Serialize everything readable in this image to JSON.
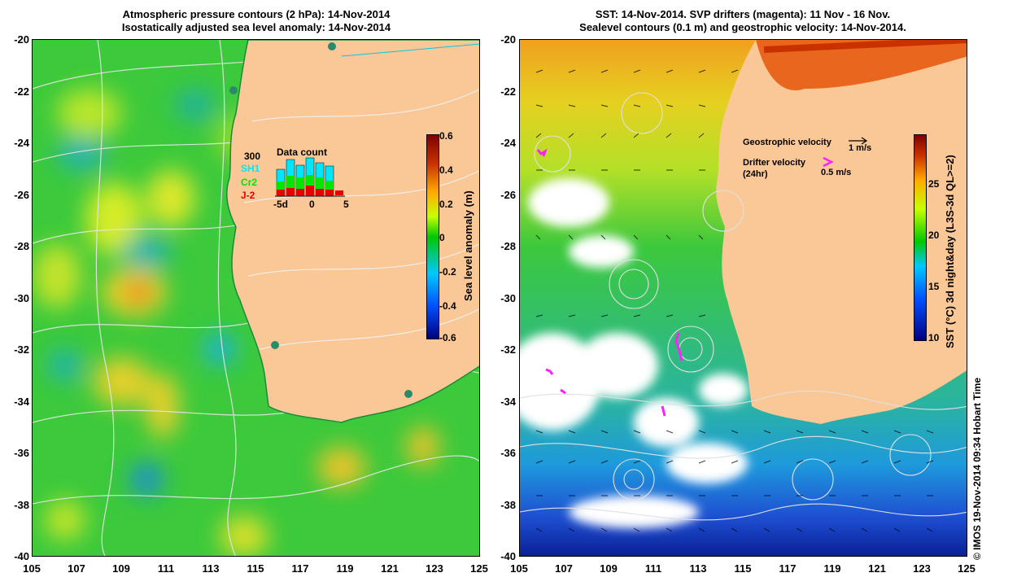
{
  "left_panel": {
    "title_line1": "Atmospheric pressure contours (2 hPa): 14-Nov-2014",
    "title_line2": "Isostatically adjusted sea level anomaly: 14-Nov-2014",
    "colorbar": {
      "label": "Sea level anomaly (m)",
      "ticks": [
        "0.6",
        "0.4",
        "0.2",
        "0",
        "-0.2",
        "-0.4",
        "-0.6"
      ],
      "colors": [
        "#000080",
        "#0050ff",
        "#00c8ff",
        "#00c800",
        "#c8ff00",
        "#ffaa00",
        "#c83200",
        "#800000"
      ]
    },
    "inset": {
      "title": "Data count",
      "max_label": "300",
      "series": [
        {
          "name": "SH1",
          "color": "#00e6ff"
        },
        {
          "name": "Cr2",
          "color": "#00e600"
        },
        {
          "name": "J-2",
          "color": "#e60000"
        }
      ],
      "xticks": [
        "-5d",
        "0",
        "5"
      ]
    }
  },
  "right_panel": {
    "title_line1": "SST: 14-Nov-2014. SVP drifters (magenta): 11 Nov - 16 Nov.",
    "title_line2": "Sealevel contours (0.1 m) and geostrophic velocity: 14-Nov-2014.",
    "colorbar": {
      "label": "SST (°C) 3d night&day (L3S-3d QL>=2)",
      "ticks": [
        "25",
        "20",
        "15",
        "10"
      ],
      "colors": [
        "#000080",
        "#0050ff",
        "#00c8ff",
        "#00c800",
        "#c8ff00",
        "#ffaa00",
        "#c83200",
        "#800000"
      ]
    },
    "legend": {
      "geostrophic_label": "Geostrophic velocity",
      "geostrophic_scale": "1 m/s",
      "drifter_label": "Drifter velocity",
      "drifter_sub": "(24hr)",
      "drifter_scale": "0.5 m/s"
    }
  },
  "axes": {
    "y_ticks": [
      "-20",
      "-22",
      "-24",
      "-26",
      "-28",
      "-30",
      "-32",
      "-34",
      "-36",
      "-38",
      "-40"
    ],
    "x_ticks": [
      "105",
      "107",
      "109",
      "111",
      "113",
      "115",
      "117",
      "119",
      "121",
      "123",
      "125"
    ]
  },
  "credit": "© IMOS 19-Nov-2014 09:34 Hobart Time"
}
